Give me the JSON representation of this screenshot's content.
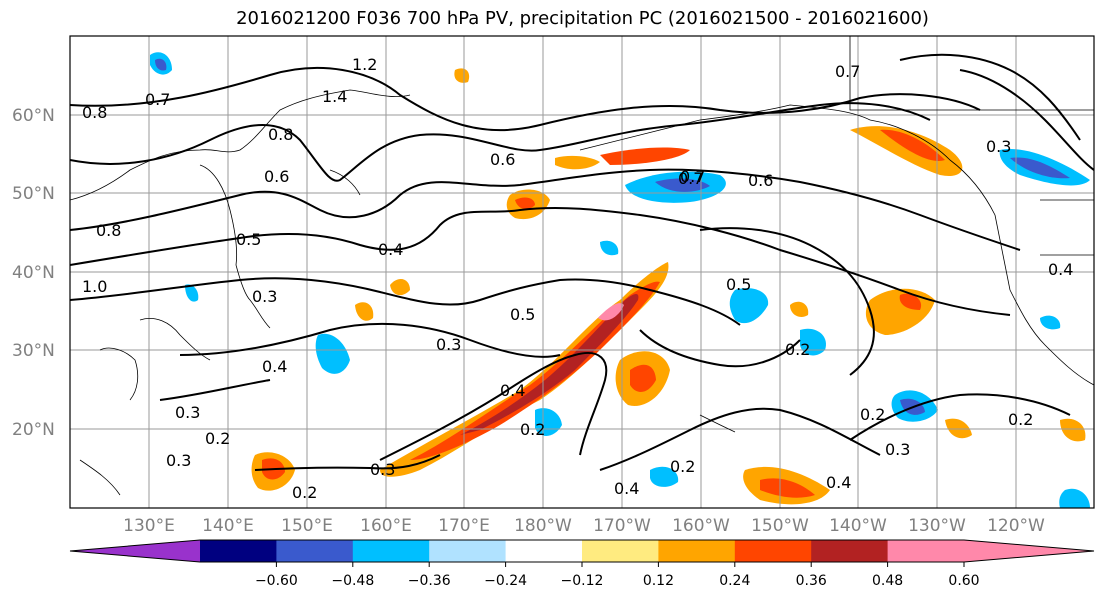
{
  "title": "2016021200 F036 700 hPa PV, precipitation PC (2016021500 - 2016021600)",
  "map": {
    "lat_labels": [
      "60°N",
      "50°N",
      "40°N",
      "30°N",
      "20°N"
    ],
    "lon_labels": [
      "130°E",
      "140°E",
      "150°E",
      "160°E",
      "170°E",
      "180°W",
      "170°W",
      "160°W",
      "150°W",
      "140°W",
      "130°W",
      "120°W"
    ],
    "contour_labels": [
      "0.8",
      "0.7",
      "1.4",
      "1.2",
      "0.8",
      "0.6",
      "0.8",
      "0.7",
      "0.6",
      "0.7",
      "0.5",
      "0.4",
      "0.5",
      "0.3",
      "0.4",
      "0.3",
      "0.4",
      "0.3",
      "0.2",
      "0.3",
      "0.4",
      "0.2",
      "0.2",
      "0.3",
      "0.2",
      "0.4",
      "0.5",
      "0.2",
      "0.7",
      "0.6",
      "0.3",
      "0.2",
      "0.3",
      "0.2",
      "0.4",
      "1.0"
    ]
  },
  "colorbar": {
    "ticks": [
      "−0.60",
      "−0.48",
      "−0.36",
      "−0.24",
      "−0.12",
      "0.12",
      "0.24",
      "0.36",
      "0.48",
      "0.60"
    ],
    "colors": [
      "#9932cc",
      "#000080",
      "#3a5acd",
      "#00bfff",
      "#b0e2ff",
      "#ffffff",
      "#ffeb80",
      "#ffa500",
      "#ff4500",
      "#b22222",
      "#ff88aa",
      "#ff88aa"
    ],
    "range": [
      -0.72,
      0.72
    ]
  },
  "legend_colors": {
    "precip_neg_strong": "#3a5acd",
    "precip_neg": "#00bfff",
    "precip_pos": "#ffa500",
    "precip_pos_strong": "#ff4500",
    "precip_pos_max": "#b22222"
  }
}
